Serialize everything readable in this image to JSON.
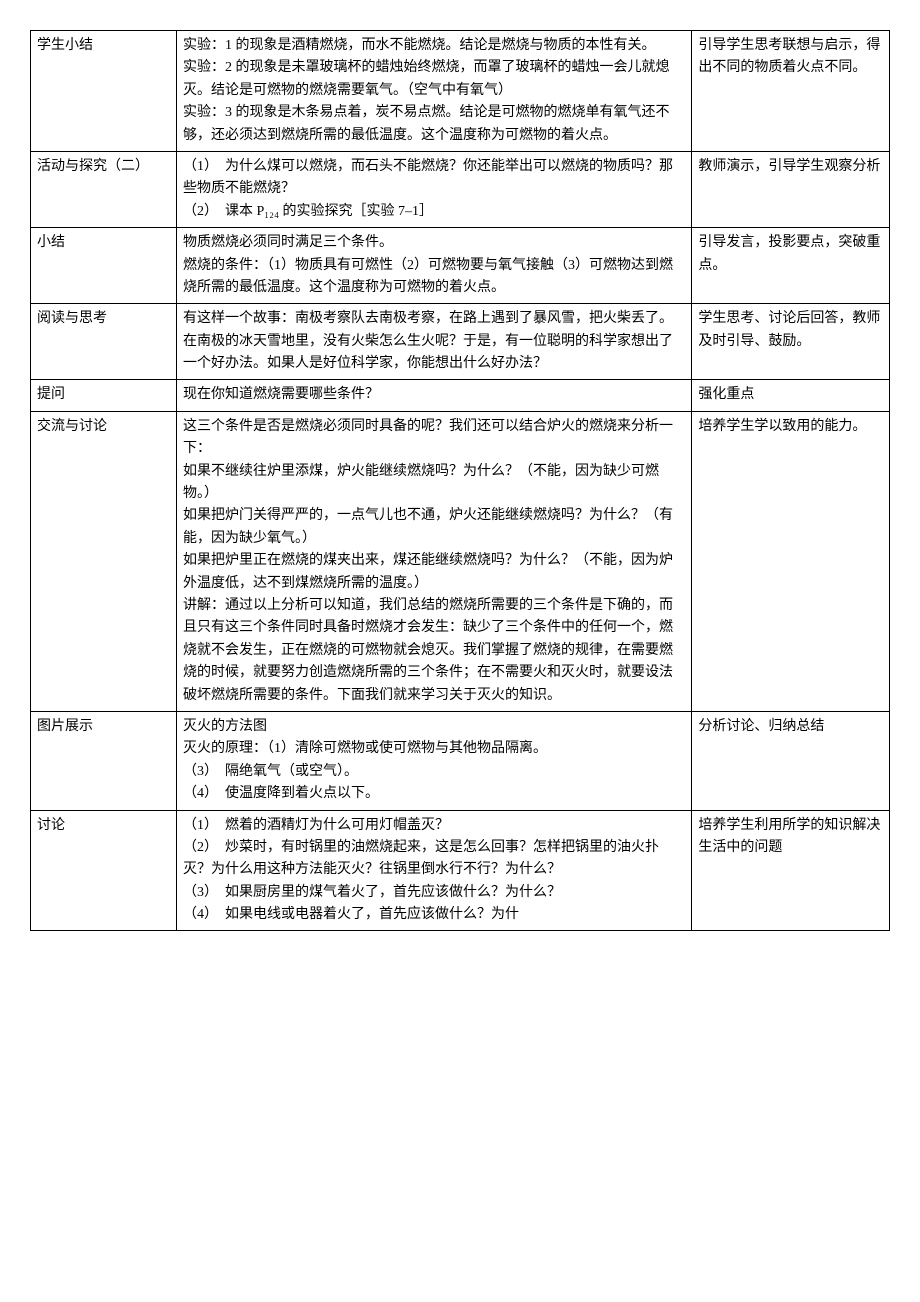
{
  "table": {
    "rows": [
      {
        "label": "学生小结",
        "content": "实验：1 的现象是酒精燃烧，而水不能燃烧。结论是燃烧与物质的本性有关。\n实验：2 的现象是未罩玻璃杯的蜡烛始终燃烧，而罩了玻璃杯的蜡烛一会儿就熄灭。结论是可燃物的燃烧需要氧气。（空气中有氧气）\n实验：3 的现象是木条易点着，炭不易点燃。结论是可燃物的燃烧单有氧气还不够，还必须达到燃烧所需的最低温度。这个温度称为可燃物的着火点。",
        "note": "引导学生思考联想与启示，得出不同的物质着火点不同。"
      },
      {
        "label": "活动与探究（二）",
        "content": "（1）　为什么煤可以燃烧，而石头不能燃烧？你还能举出可以燃烧的物质吗？那些物质不能燃烧？\n（2）　课本 P₁₂₄ 的实验探究［实验 7–1］",
        "note": "教师演示，引导学生观察分析"
      },
      {
        "label": "小结",
        "content": "物质燃烧必须同时满足三个条件。\n燃烧的条件：（1）物质具有可燃性（2）可燃物要与氧气接触（3）可燃物达到燃烧所需的最低温度。这个温度称为可燃物的着火点。",
        "note": "引导发言，投影要点，突破重点。"
      },
      {
        "label": "阅读与思考",
        "content": "有这样一个故事：南极考察队去南极考察，在路上遇到了暴风雪，把火柴丢了。在南极的冰天雪地里，没有火柴怎么生火呢？于是，有一位聪明的科学家想出了一个好办法。如果人是好位科学家，你能想出什么好办法？",
        "note": "学生思考、讨论后回答，教师及时引导、鼓励。"
      },
      {
        "label": "提问",
        "content": "现在你知道燃烧需要哪些条件？",
        "note": "强化重点"
      },
      {
        "label": "交流与讨论",
        "content": "这三个条件是否是燃烧必须同时具备的呢？我们还可以结合炉火的燃烧来分析一下：\n如果不继续往炉里添煤，炉火能继续燃烧吗？为什么？（不能，因为缺少可燃物。）\n如果把炉门关得严严的，一点气儿也不通，炉火还能继续燃烧吗？为什么？（有能，因为缺少氧气。）\n如果把炉里正在燃烧的煤夹出来，煤还能继续燃烧吗？为什么？（不能，因为炉外温度低，达不到煤燃烧所需的温度。）\n讲解：通过以上分析可以知道，我们总结的燃烧所需要的三个条件是下确的，而且只有这三个条件同时具备时燃烧才会发生：缺少了三个条件中的任何一个，燃烧就不会发生，正在燃烧的可燃物就会熄灭。我们掌握了燃烧的规律，在需要燃烧的时候，就要努力创造燃烧所需的三个条件；在不需要火和灭火时，就要设法破坏燃烧所需要的条件。下面我们就来学习关于灭火的知识。",
        "note": "培养学生学以致用的能力。"
      },
      {
        "label": "图片展示",
        "content": "灭火的方法图\n灭火的原理：（1）清除可燃物或使可燃物与其他物品隔离。\n（3）　隔绝氧气（或空气）。\n（4）　使温度降到着火点以下。",
        "note": "分析讨论、归纳总结"
      },
      {
        "label": "讨论",
        "content": "（1）　燃着的酒精灯为什么可用灯帽盖灭？\n（2）　炒菜时，有时锅里的油燃烧起来，这是怎么回事？怎样把锅里的油火扑灭？为什么用这种方法能灭火？往锅里倒水行不行？为什么？\n（3）　如果厨房里的煤气着火了，首先应该做什么？为什么？\n（4）　如果电线或电器着火了，首先应该做什么？为什",
        "note": "培养学生利用所学的知识解决生活中的问题"
      }
    ]
  }
}
